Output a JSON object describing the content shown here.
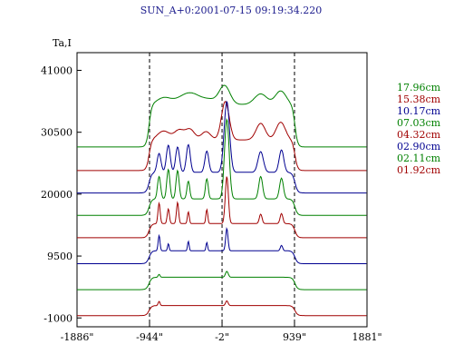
{
  "chart_data": {
    "type": "line",
    "title": "SUN_A+0:2001-07-15 09:19:34.220",
    "ylabel": "Ta,I",
    "xlabel": "",
    "y_ticks": [
      {
        "label": "41000",
        "value": 41000
      },
      {
        "label": "30500",
        "value": 30500
      },
      {
        "label": "20000",
        "value": 20000
      },
      {
        "label": "9500",
        "value": 9500
      },
      {
        "label": "-1000",
        "value": -1000
      }
    ],
    "x_ticks": [
      {
        "label": "-1886\"",
        "value": -1886
      },
      {
        "label": "-944\"",
        "value": -944
      },
      {
        "label": "-2\"",
        "value": -2
      },
      {
        "label": "939\"",
        "value": 939
      },
      {
        "label": "1881\"",
        "value": 1881
      }
    ],
    "xlim": [
      -1886,
      1881
    ],
    "ylim": [
      -2500,
      44000
    ],
    "vlines": [
      -944,
      -2,
      939
    ],
    "grid": false,
    "legend_position": "right",
    "series": [
      {
        "name": "17.96cm",
        "color": "#008000",
        "offset": 28000,
        "shape": "smooth"
      },
      {
        "name": "15.38cm",
        "color": "#a00000",
        "offset": 24000,
        "shape": "smooth2"
      },
      {
        "name": "10.17cm",
        "color": "#000090",
        "offset": 20200,
        "shape": "peaky"
      },
      {
        "name": "07.03cm",
        "color": "#008000",
        "offset": 16400,
        "shape": "peaky2"
      },
      {
        "name": "04.32cm",
        "color": "#a00000",
        "offset": 12600,
        "shape": "spiky"
      },
      {
        "name": "02.90cm",
        "color": "#000090",
        "offset": 8200,
        "shape": "spiky2"
      },
      {
        "name": "02.11cm",
        "color": "#008000",
        "offset": 3800,
        "shape": "flat"
      },
      {
        "name": "01.92cm",
        "color": "#a00000",
        "offset": -600,
        "shape": "flat2"
      }
    ]
  }
}
